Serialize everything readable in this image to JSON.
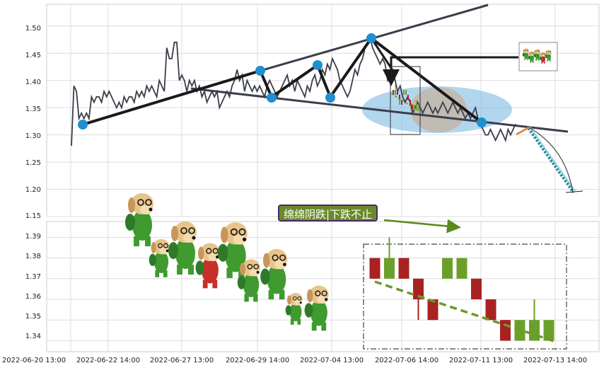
{
  "chart_data": [
    {
      "type": "line",
      "panel": "main",
      "ylim": [
        1.15,
        1.54
      ],
      "y_ticks": [
        "1.15",
        "1.20",
        "1.25",
        "1.30",
        "1.35",
        "1.40",
        "1.45",
        "1.50"
      ],
      "grid": true,
      "series": [
        {
          "values": [
            1.28,
            1.39,
            1.38,
            1.33,
            1.34,
            1.33,
            1.34,
            1.33,
            1.37,
            1.36,
            1.37,
            1.37,
            1.36,
            1.38,
            1.37,
            1.38,
            1.37,
            1.36,
            1.35,
            1.36,
            1.35,
            1.37,
            1.36,
            1.37,
            1.37,
            1.36,
            1.38,
            1.37,
            1.38,
            1.37,
            1.39,
            1.38,
            1.39,
            1.38,
            1.37,
            1.4,
            1.39,
            1.38,
            1.46,
            1.44,
            1.44,
            1.47,
            1.47,
            1.4,
            1.41,
            1.4,
            1.38,
            1.4,
            1.39,
            1.4,
            1.38,
            1.39,
            1.37,
            1.38,
            1.36,
            1.37,
            1.38,
            1.37,
            1.38,
            1.35,
            1.36,
            1.37,
            1.38,
            1.37,
            1.39,
            1.4,
            1.42,
            1.4,
            1.41,
            1.38,
            1.4,
            1.39,
            1.38,
            1.39,
            1.38,
            1.39,
            1.38,
            1.37,
            1.39,
            1.4,
            1.39,
            1.38,
            1.37,
            1.38,
            1.39,
            1.4,
            1.41,
            1.39,
            1.4,
            1.38,
            1.4,
            1.39,
            1.38,
            1.37,
            1.39,
            1.38,
            1.4,
            1.41,
            1.39,
            1.4,
            1.42,
            1.41,
            1.43,
            1.42,
            1.44,
            1.43,
            1.42,
            1.4,
            1.39,
            1.38,
            1.37,
            1.38,
            1.4,
            1.42,
            1.41,
            1.43,
            1.44,
            1.46,
            1.47,
            1.48,
            1.46,
            1.45,
            1.44,
            1.43,
            1.44,
            1.43,
            1.4,
            1.41,
            1.42,
            1.4,
            1.38,
            1.39,
            1.37,
            1.36,
            1.37,
            1.36,
            1.34,
            1.35,
            1.36,
            1.35,
            1.34,
            1.35,
            1.36,
            1.35,
            1.34,
            1.35,
            1.34,
            1.35,
            1.36,
            1.35,
            1.34,
            1.35,
            1.36,
            1.35,
            1.34,
            1.35,
            1.34,
            1.33,
            1.34,
            1.33,
            1.34,
            1.35,
            1.33,
            1.32,
            1.31,
            1.3,
            1.3,
            1.31,
            1.3,
            1.29,
            1.3,
            1.31,
            1.3,
            1.29,
            1.31,
            1.3,
            1.31,
            1.32
          ]
        }
      ]
    },
    {
      "type": "bar",
      "panel": "detail",
      "ylim": [
        1.335,
        1.398
      ],
      "y_ticks": [
        "1.34",
        "1.35",
        "1.36",
        "1.37",
        "1.38",
        "1.39"
      ],
      "grid": true,
      "x_ticks": [
        "2022-06-20 13:00",
        "2022-06-22 14:00",
        "2022-06-27 13:00",
        "2022-06-29 14:00",
        "2022-07-04 13:00",
        "2022-07-06 14:00",
        "2022-07-11 13:00",
        "2022-07-13 14:00"
      ],
      "candles": [
        {
          "open": 1.38,
          "high": 1.38,
          "low": 1.37,
          "close": 1.37,
          "dir": "down"
        },
        {
          "open": 1.37,
          "high": 1.39,
          "low": 1.37,
          "close": 1.38,
          "dir": "up"
        },
        {
          "open": 1.38,
          "high": 1.38,
          "low": 1.37,
          "close": 1.37,
          "dir": "down"
        },
        {
          "open": 1.37,
          "high": 1.37,
          "low": 1.35,
          "close": 1.36,
          "dir": "down"
        },
        {
          "open": 1.36,
          "high": 1.36,
          "low": 1.35,
          "close": 1.35,
          "dir": "down"
        },
        {
          "open": 1.38,
          "high": 1.38,
          "low": 1.37,
          "close": 1.37,
          "dir": "up"
        },
        {
          "open": 1.38,
          "high": 1.38,
          "low": 1.37,
          "close": 1.37,
          "dir": "up"
        },
        {
          "open": 1.37,
          "high": 1.37,
          "low": 1.36,
          "close": 1.36,
          "dir": "down"
        },
        {
          "open": 1.36,
          "high": 1.36,
          "low": 1.35,
          "close": 1.35,
          "dir": "down"
        },
        {
          "open": 1.35,
          "high": 1.35,
          "low": 1.34,
          "close": 1.34,
          "dir": "down"
        },
        {
          "open": 1.35,
          "high": 1.35,
          "low": 1.34,
          "close": 1.34,
          "dir": "up"
        },
        {
          "open": 1.35,
          "high": 1.36,
          "low": 1.34,
          "close": 1.34,
          "dir": "up"
        },
        {
          "open": 1.35,
          "high": 1.35,
          "low": 1.34,
          "close": 1.34,
          "dir": "up"
        }
      ]
    }
  ],
  "annotation": {
    "label": "绵绵阴跌|下跌不止"
  },
  "colors": {
    "line": "#3a3e4a",
    "marker": "#1f8fd0",
    "trend": "#1a1a1a",
    "up": "#6aa02a",
    "down": "#a82222",
    "ellipse": "#74b4e2",
    "ellipse_inner": "#c8a88a",
    "dashed_trend": "#6a9a2a",
    "grid": "#dddddd"
  }
}
